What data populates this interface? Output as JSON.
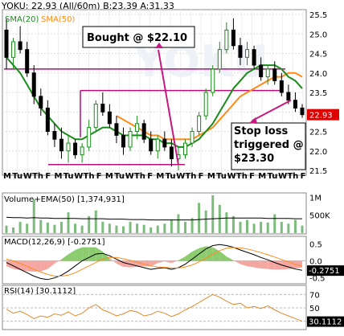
{
  "header": {
    "symbol": "YOKU: 22.93 (All/60m)",
    "bid_ask": "B:23.39 A:31.33",
    "sma20": "SMA(20)",
    "sma50": "SMA(50)"
  },
  "chart_data": {
    "type": "candlestick",
    "price_panel": {
      "y_ticks": [
        "25.5",
        "25.0",
        "24.5",
        "24.0",
        "23.5",
        "23.0",
        "22.5",
        "22.0",
        "21.5"
      ],
      "ylim": [
        21.5,
        25.5
      ],
      "last_price_label": "22.93",
      "x_ticks": [
        "M",
        "Tu",
        "W",
        "Th",
        "F",
        "M",
        "Tu",
        "W",
        "Th",
        "F",
        "M",
        "Tu",
        "W",
        "Th",
        "F",
        "M",
        "Tu",
        "W",
        "Th",
        "F",
        "M",
        "Tu",
        "W",
        "Th",
        "F",
        "M",
        "Tu",
        "W",
        "Th",
        "F"
      ],
      "candles": [
        [
          25.1,
          25.4,
          24.1,
          24.4
        ],
        [
          24.4,
          24.9,
          24.1,
          24.8
        ],
        [
          24.8,
          25.2,
          24.5,
          24.6
        ],
        [
          24.6,
          24.8,
          23.9,
          24.0
        ],
        [
          24.0,
          24.2,
          23.2,
          23.4
        ],
        [
          23.4,
          23.6,
          22.9,
          23.1
        ],
        [
          23.1,
          23.3,
          22.4,
          22.5
        ],
        [
          22.5,
          22.7,
          22.1,
          22.3
        ],
        [
          22.3,
          22.6,
          21.8,
          22.0
        ],
        [
          22.0,
          22.4,
          21.7,
          22.2
        ],
        [
          22.2,
          22.3,
          21.8,
          21.9
        ],
        [
          21.9,
          22.2,
          21.7,
          22.1
        ],
        [
          22.1,
          22.8,
          22.0,
          22.6
        ],
        [
          22.6,
          23.3,
          22.5,
          23.2
        ],
        [
          23.2,
          23.5,
          22.9,
          23.0
        ],
        [
          23.0,
          23.2,
          22.6,
          22.7
        ],
        [
          22.7,
          22.9,
          22.2,
          22.4
        ],
        [
          22.4,
          22.6,
          21.9,
          22.1
        ],
        [
          22.1,
          22.6,
          22.0,
          22.5
        ],
        [
          22.5,
          22.9,
          22.3,
          22.7
        ],
        [
          22.7,
          22.8,
          22.2,
          22.3
        ],
        [
          22.3,
          22.5,
          21.9,
          22.0
        ],
        [
          22.0,
          22.4,
          21.8,
          22.3
        ],
        [
          22.3,
          22.5,
          22.0,
          22.1
        ],
        [
          22.1,
          22.3,
          21.6,
          21.8
        ],
        [
          21.8,
          22.1,
          21.5,
          21.9
        ],
        [
          21.9,
          22.3,
          21.8,
          22.2
        ],
        [
          22.2,
          22.6,
          22.1,
          22.5
        ],
        [
          22.5,
          23.0,
          22.4,
          22.9
        ],
        [
          22.9,
          23.6,
          22.8,
          23.5
        ],
        [
          23.5,
          24.2,
          23.4,
          24.1
        ],
        [
          24.1,
          24.8,
          24.0,
          24.6
        ],
        [
          24.6,
          25.3,
          24.5,
          25.1
        ],
        [
          25.1,
          25.4,
          24.6,
          24.7
        ],
        [
          24.7,
          24.9,
          24.2,
          24.4
        ],
        [
          24.4,
          24.8,
          24.2,
          24.6
        ],
        [
          24.6,
          24.7,
          24.1,
          24.2
        ],
        [
          24.2,
          24.4,
          23.8,
          23.9
        ],
        [
          23.9,
          24.2,
          23.7,
          24.1
        ],
        [
          24.1,
          24.3,
          23.7,
          23.8
        ],
        [
          23.8,
          24.0,
          23.4,
          23.5
        ],
        [
          23.5,
          23.7,
          23.2,
          23.3
        ],
        [
          23.3,
          23.5,
          23.0,
          23.1
        ],
        [
          23.1,
          23.2,
          22.85,
          22.93
        ]
      ],
      "sma20": [
        24.4,
        24.2,
        24.0,
        23.7,
        23.4,
        23.1,
        22.9,
        22.7,
        22.5,
        22.4,
        22.3,
        22.3,
        22.4,
        22.5,
        22.6,
        22.6,
        22.5,
        22.4,
        22.4,
        22.4,
        22.4,
        22.3,
        22.3,
        22.2,
        22.2,
        22.1,
        22.1,
        22.2,
        22.3,
        22.5,
        22.7,
        23.0,
        23.3,
        23.6,
        23.8,
        24.0,
        24.1,
        24.2,
        24.2,
        24.2,
        24.1,
        23.9,
        23.8,
        23.6
      ],
      "sma50": [
        null,
        null,
        null,
        null,
        null,
        null,
        null,
        null,
        null,
        null,
        null,
        null,
        null,
        null,
        null,
        null,
        22.9,
        22.8,
        22.7,
        22.6,
        22.5,
        22.4,
        22.4,
        22.3,
        22.3,
        22.3,
        22.3,
        22.3,
        22.4,
        22.5,
        22.6,
        22.8,
        23.0,
        23.2,
        23.4,
        23.5,
        23.6,
        23.7,
        23.8,
        23.9,
        23.9,
        24.0,
        24.0,
        23.9
      ],
      "hlines": [
        24.1,
        23.55,
        23.5,
        21.65
      ],
      "annotations": {
        "bought": "Bought @ $22.10",
        "stop": [
          "Stop loss",
          "triggered @",
          "$23.30"
        ]
      }
    },
    "volume_panel": {
      "label": "Volume+EMA(50)",
      "value": "[1,374,931]",
      "y_ticks": [
        "1M",
        "500K"
      ],
      "values": [
        0.2,
        0.15,
        0.3,
        0.25,
        0.9,
        0.35,
        0.28,
        0.22,
        0.3,
        0.55,
        0.25,
        0.2,
        0.45,
        0.6,
        0.3,
        0.25,
        0.2,
        0.18,
        0.3,
        0.25,
        0.22,
        0.15,
        0.2,
        0.25,
        0.35,
        0.5,
        0.3,
        0.4,
        0.8,
        0.6,
        1.0,
        0.75,
        0.55,
        0.45,
        0.3,
        0.35,
        0.25,
        0.3,
        0.28,
        0.5,
        0.3,
        0.25,
        0.35,
        0.2
      ],
      "ema": [
        0.42,
        0.41,
        0.41,
        0.4,
        0.41,
        0.4,
        0.4,
        0.39,
        0.39,
        0.39,
        0.39,
        0.38,
        0.38,
        0.38,
        0.38,
        0.37,
        0.37,
        0.37,
        0.36,
        0.36,
        0.36,
        0.35,
        0.35,
        0.35,
        0.35,
        0.35,
        0.35,
        0.35,
        0.36,
        0.37,
        0.38,
        0.39,
        0.4,
        0.4,
        0.4,
        0.4,
        0.4,
        0.4,
        0.39,
        0.39,
        0.39,
        0.39,
        0.38,
        0.38
      ]
    },
    "macd_panel": {
      "label": "MACD(12,26,9)",
      "value": "[-0.2751]",
      "y_ticks": [
        "0.5",
        "0.0",
        "-0.5"
      ],
      "last_label": "-0.2751",
      "macd": [
        -0.05,
        -0.15,
        -0.25,
        -0.35,
        -0.45,
        -0.52,
        -0.55,
        -0.5,
        -0.42,
        -0.3,
        -0.15,
        0.0,
        0.1,
        0.2,
        0.22,
        0.15,
        0.05,
        -0.05,
        -0.1,
        -0.15,
        -0.2,
        -0.25,
        -0.22,
        -0.2,
        -0.25,
        -0.2,
        -0.1,
        0.05,
        0.2,
        0.35,
        0.45,
        0.48,
        0.45,
        0.4,
        0.32,
        0.25,
        0.18,
        0.1,
        0.03,
        -0.05,
        -0.12,
        -0.18,
        -0.24,
        -0.28
      ],
      "signal": [
        0.05,
        0.0,
        -0.08,
        -0.16,
        -0.25,
        -0.33,
        -0.4,
        -0.45,
        -0.45,
        -0.42,
        -0.35,
        -0.25,
        -0.15,
        -0.05,
        0.05,
        0.1,
        0.1,
        0.06,
        0.02,
        -0.04,
        -0.1,
        -0.15,
        -0.18,
        -0.19,
        -0.21,
        -0.21,
        -0.18,
        -0.12,
        -0.03,
        0.08,
        0.2,
        0.3,
        0.37,
        0.39,
        0.38,
        0.35,
        0.3,
        0.24,
        0.18,
        0.11,
        0.04,
        -0.03,
        -0.1,
        -0.16
      ]
    },
    "rsi_panel": {
      "label": "RSI(14)",
      "value": "[30.1112]",
      "y_ticks": [
        "70",
        "50",
        "30"
      ],
      "last_label": "30.1112",
      "values": [
        48,
        42,
        45,
        40,
        34,
        38,
        36,
        41,
        39,
        44,
        38,
        42,
        50,
        55,
        47,
        43,
        38,
        41,
        46,
        44,
        38,
        40,
        45,
        42,
        37,
        41,
        47,
        52,
        58,
        64,
        70,
        66,
        60,
        55,
        57,
        50,
        52,
        49,
        53,
        47,
        42,
        38,
        34,
        30
      ]
    }
  }
}
